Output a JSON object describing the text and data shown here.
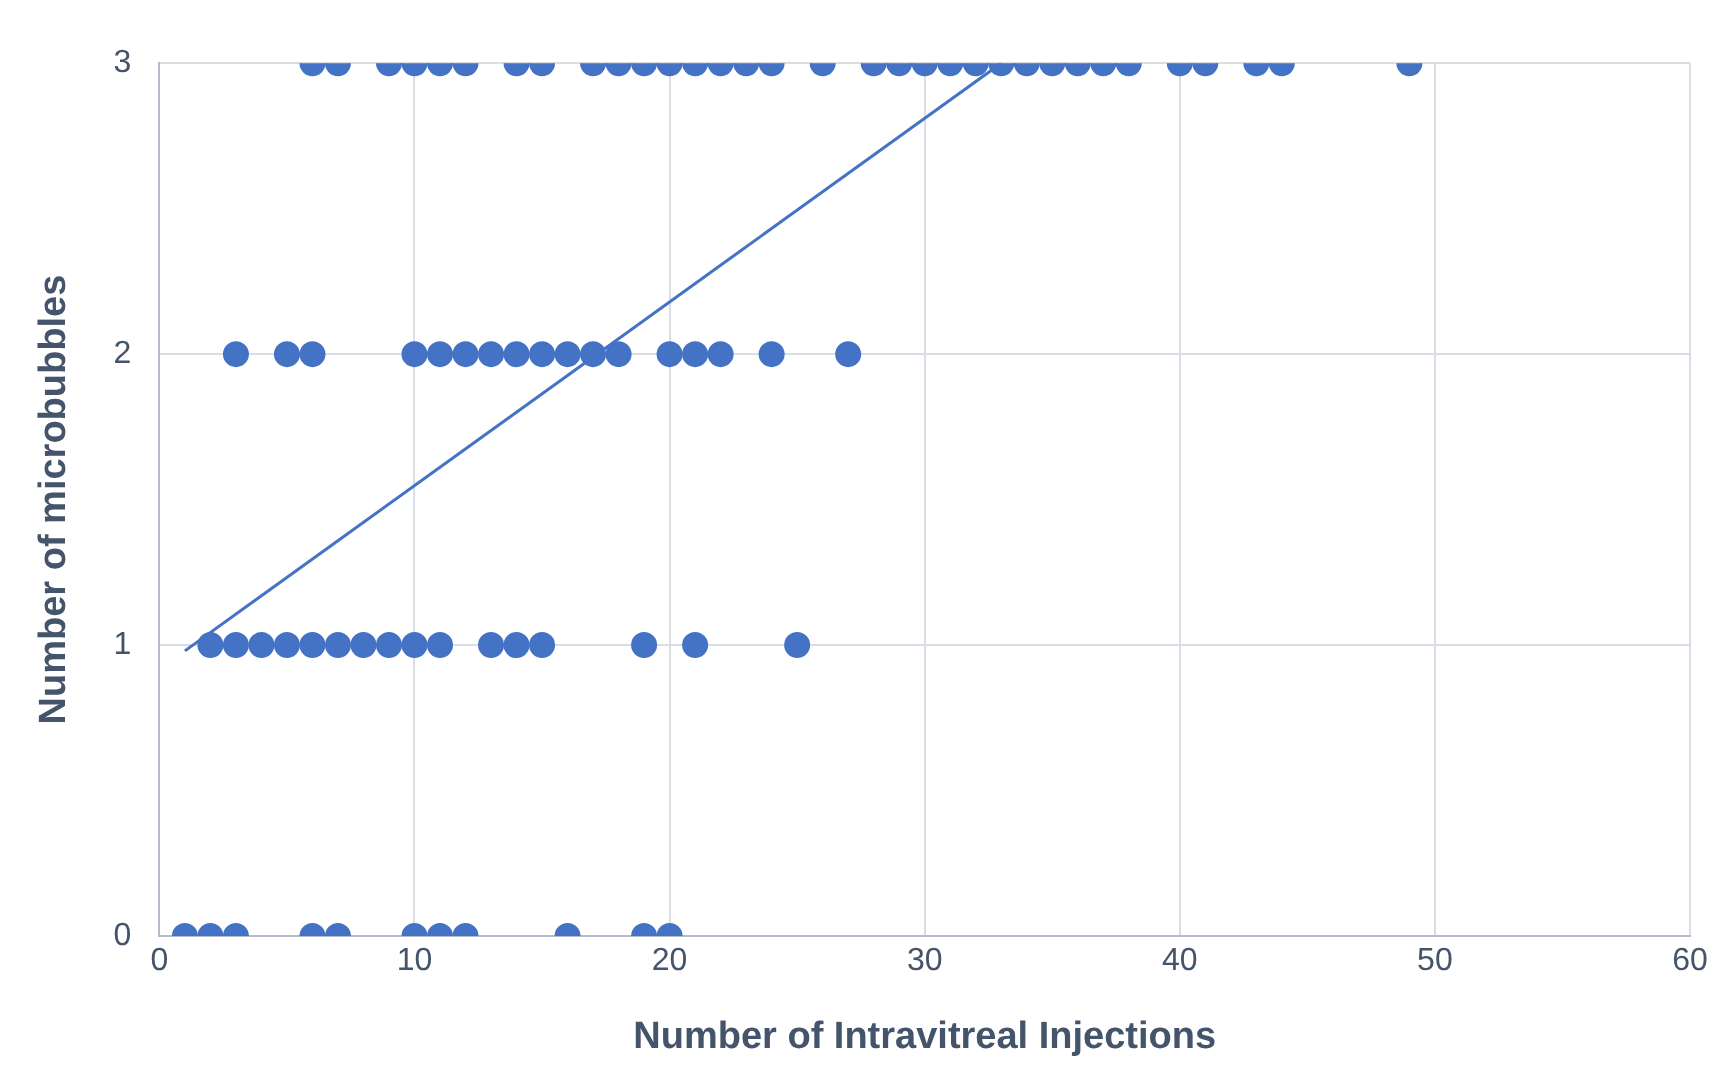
{
  "chart_data": {
    "type": "scatter",
    "xlabel": "Number of Intravitreal Injections",
    "ylabel": "Number of microbubbles",
    "xlim": [
      0,
      60
    ],
    "xticks": [
      0,
      10,
      20,
      30,
      40,
      50,
      60
    ],
    "ylim": [
      0,
      3
    ],
    "yticks": [
      0,
      1,
      2,
      3
    ],
    "grid": true,
    "marker": "circle",
    "series": [
      {
        "color": "#4472c4",
        "x": [
          1,
          2,
          3,
          6,
          7,
          10,
          11,
          12,
          16,
          19,
          20,
          2,
          3,
          4,
          5,
          6,
          7,
          8,
          9,
          10,
          11,
          13,
          14,
          15,
          19,
          21,
          25,
          3,
          5,
          6,
          10,
          11,
          12,
          13,
          14,
          15,
          16,
          17,
          18,
          20,
          21,
          22,
          24,
          27,
          6,
          7,
          9,
          10,
          11,
          12,
          14,
          15,
          17,
          18,
          19,
          20,
          21,
          22,
          23,
          24,
          26,
          28,
          29,
          30,
          31,
          32,
          33,
          34,
          35,
          36,
          37,
          38,
          40,
          41,
          43,
          44,
          49
        ],
        "values": [
          0,
          0,
          0,
          0,
          0,
          0,
          0,
          0,
          0,
          0,
          0,
          1,
          1,
          1,
          1,
          1,
          1,
          1,
          1,
          1,
          1,
          1,
          1,
          1,
          1,
          1,
          1,
          2,
          2,
          2,
          2,
          2,
          2,
          2,
          2,
          2,
          2,
          2,
          2,
          2,
          2,
          2,
          2,
          2,
          3,
          3,
          3,
          3,
          3,
          3,
          3,
          3,
          3,
          3,
          3,
          3,
          3,
          3,
          3,
          3,
          3,
          3,
          3,
          3,
          3,
          3,
          3,
          3,
          3,
          3,
          3,
          3,
          3,
          3,
          3,
          3,
          3
        ]
      },
      {
        "type": "line",
        "color": "#4472c4",
        "x": [
          1,
          33
        ],
        "values": [
          0.98,
          3
        ],
        "marker": "none"
      }
    ]
  }
}
